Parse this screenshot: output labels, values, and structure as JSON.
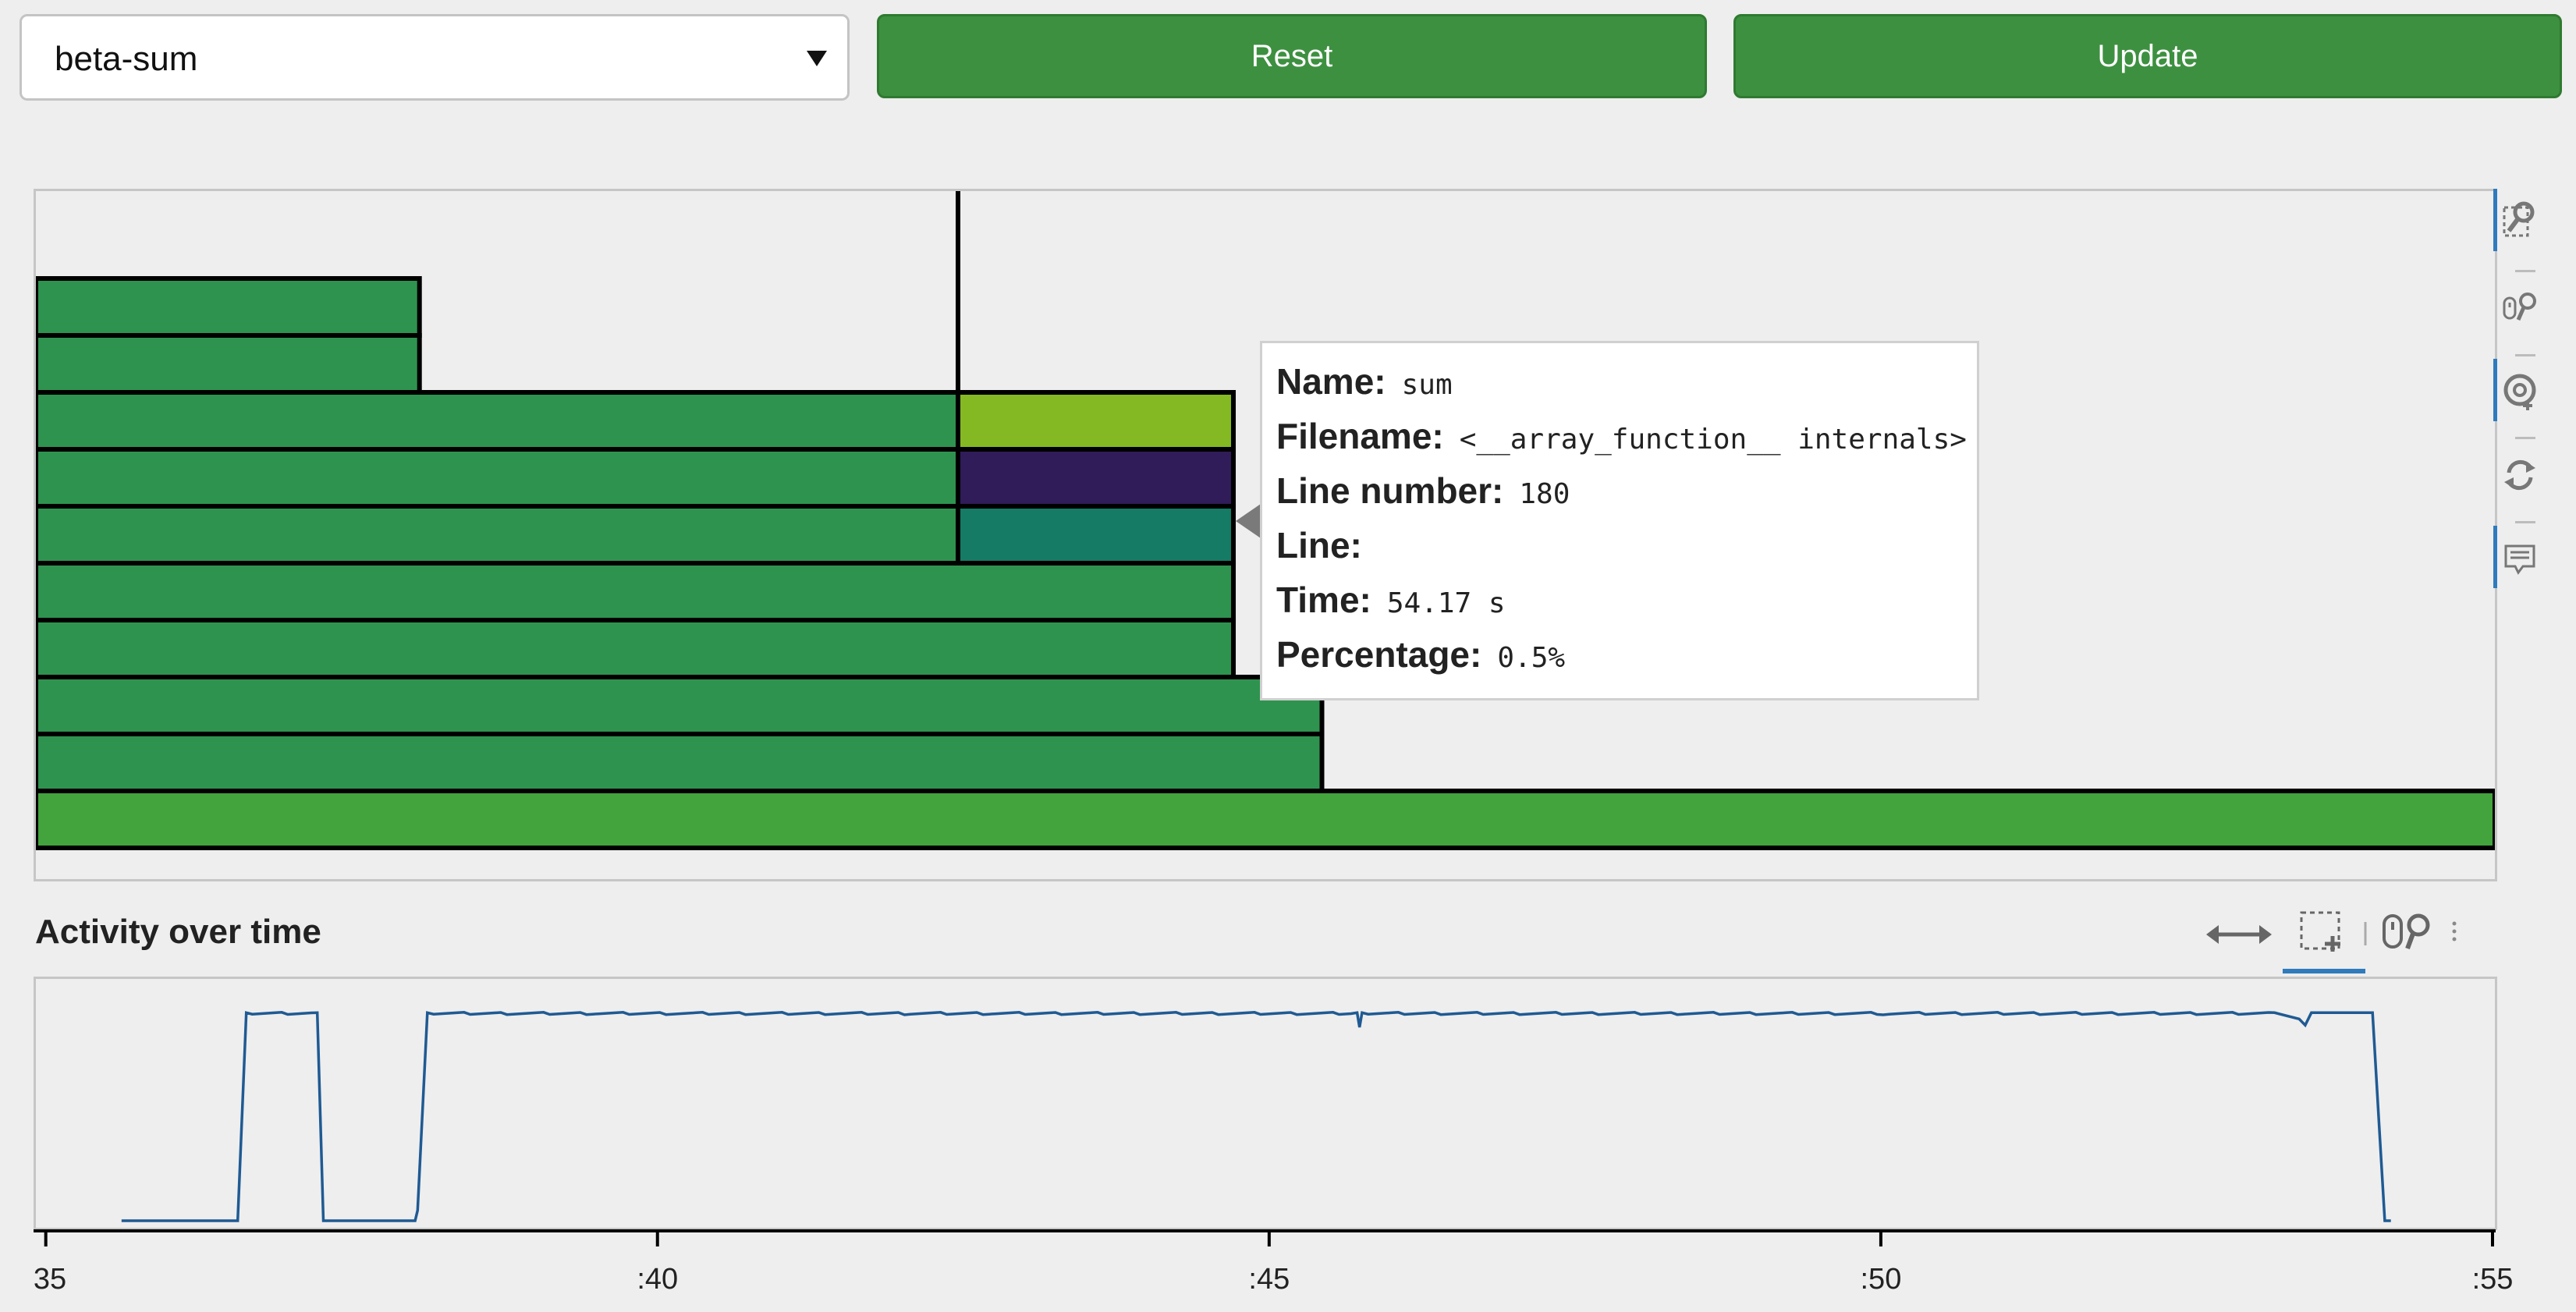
{
  "controls": {
    "select_value": "beta-sum",
    "reset_label": "Reset",
    "update_label": "Update"
  },
  "colors": {
    "frame_green": "#2f9350",
    "root_green": "#43a33d",
    "lime": "#85b923",
    "purple": "#2f1c58",
    "teal": "#167b64",
    "button_green": "#3d9040",
    "active_tool": "#2f7bbd",
    "activity_line": "#1f5a93"
  },
  "flamegraph": {
    "frames": [
      {
        "depth": 0,
        "start": 0.0,
        "end": 1.0,
        "color": "root_green"
      },
      {
        "depth": 1,
        "start": 0.0,
        "end": 0.523,
        "color": "frame_green"
      },
      {
        "depth": 2,
        "start": 0.0,
        "end": 0.523,
        "color": "frame_green"
      },
      {
        "depth": 3,
        "start": 0.0,
        "end": 0.487,
        "color": "frame_green"
      },
      {
        "depth": 4,
        "start": 0.0,
        "end": 0.487,
        "color": "frame_green"
      },
      {
        "depth": 5,
        "start": 0.0,
        "end": 0.375,
        "color": "frame_green"
      },
      {
        "depth": 5,
        "start": 0.375,
        "end": 0.487,
        "color": "teal"
      },
      {
        "depth": 6,
        "start": 0.0,
        "end": 0.375,
        "color": "frame_green"
      },
      {
        "depth": 6,
        "start": 0.375,
        "end": 0.487,
        "color": "purple"
      },
      {
        "depth": 7,
        "start": 0.0,
        "end": 0.375,
        "color": "frame_green"
      },
      {
        "depth": 7,
        "start": 0.375,
        "end": 0.487,
        "color": "lime"
      },
      {
        "depth": 8,
        "start": 0.0,
        "end": 0.156,
        "color": "frame_green"
      },
      {
        "depth": 9,
        "start": 0.0,
        "end": 0.156,
        "color": "frame_green"
      }
    ],
    "cursor_position": 0.375
  },
  "tooltip": {
    "rows": [
      {
        "label": "Name:",
        "value": "sum"
      },
      {
        "label": "Filename:",
        "value": "<__array_function__ internals>"
      },
      {
        "label": "Line number:",
        "value": "180"
      },
      {
        "label": "Line:",
        "value": ""
      },
      {
        "label": "Time:",
        "value": "54.17 s"
      },
      {
        "label": "Percentage:",
        "value": "0.5%"
      }
    ]
  },
  "toolbar": {
    "tools": [
      {
        "name": "box-zoom-icon",
        "active": true
      },
      {
        "name": "wheel-zoom-icon",
        "active": false
      },
      {
        "name": "hover-icon",
        "active": true
      },
      {
        "name": "reset-icon",
        "active": false
      },
      {
        "name": "tooltip-icon",
        "active": true
      }
    ]
  },
  "activity": {
    "title": "Activity over time",
    "tools": [
      {
        "name": "pan-icon",
        "active": false
      },
      {
        "name": "box-select-icon",
        "active": true
      },
      {
        "name": "wheel-zoom-icon",
        "active": false
      }
    ],
    "chart_data": {
      "type": "line",
      "title": "Activity over time",
      "xlabel": "",
      "ylabel": "",
      "xlim": [
        34.9,
        55
      ],
      "x_ticks": [
        ":35",
        ":40",
        ":45",
        ":50",
        ":55"
      ],
      "x_tick_values": [
        35,
        40,
        45,
        50,
        55
      ],
      "ylim": [
        0,
        1.08
      ],
      "series": [
        {
          "x": [
            35.6,
            36.55,
            36.62,
            37.2,
            37.25,
            38.0,
            38.02,
            38.1,
            42.0,
            45.7,
            45.72,
            45.74,
            50.0,
            53.2,
            53.4,
            53.45,
            53.5,
            54.0,
            54.05,
            54.1,
            54.15
          ],
          "y": [
            0.0,
            0.0,
            1.0,
            1.0,
            0.0,
            0.0,
            0.05,
            1.0,
            0.99,
            1.0,
            0.93,
            1.0,
            0.99,
            1.0,
            0.97,
            0.94,
            1.0,
            1.0,
            0.5,
            0.0,
            0.0
          ]
        }
      ]
    }
  }
}
